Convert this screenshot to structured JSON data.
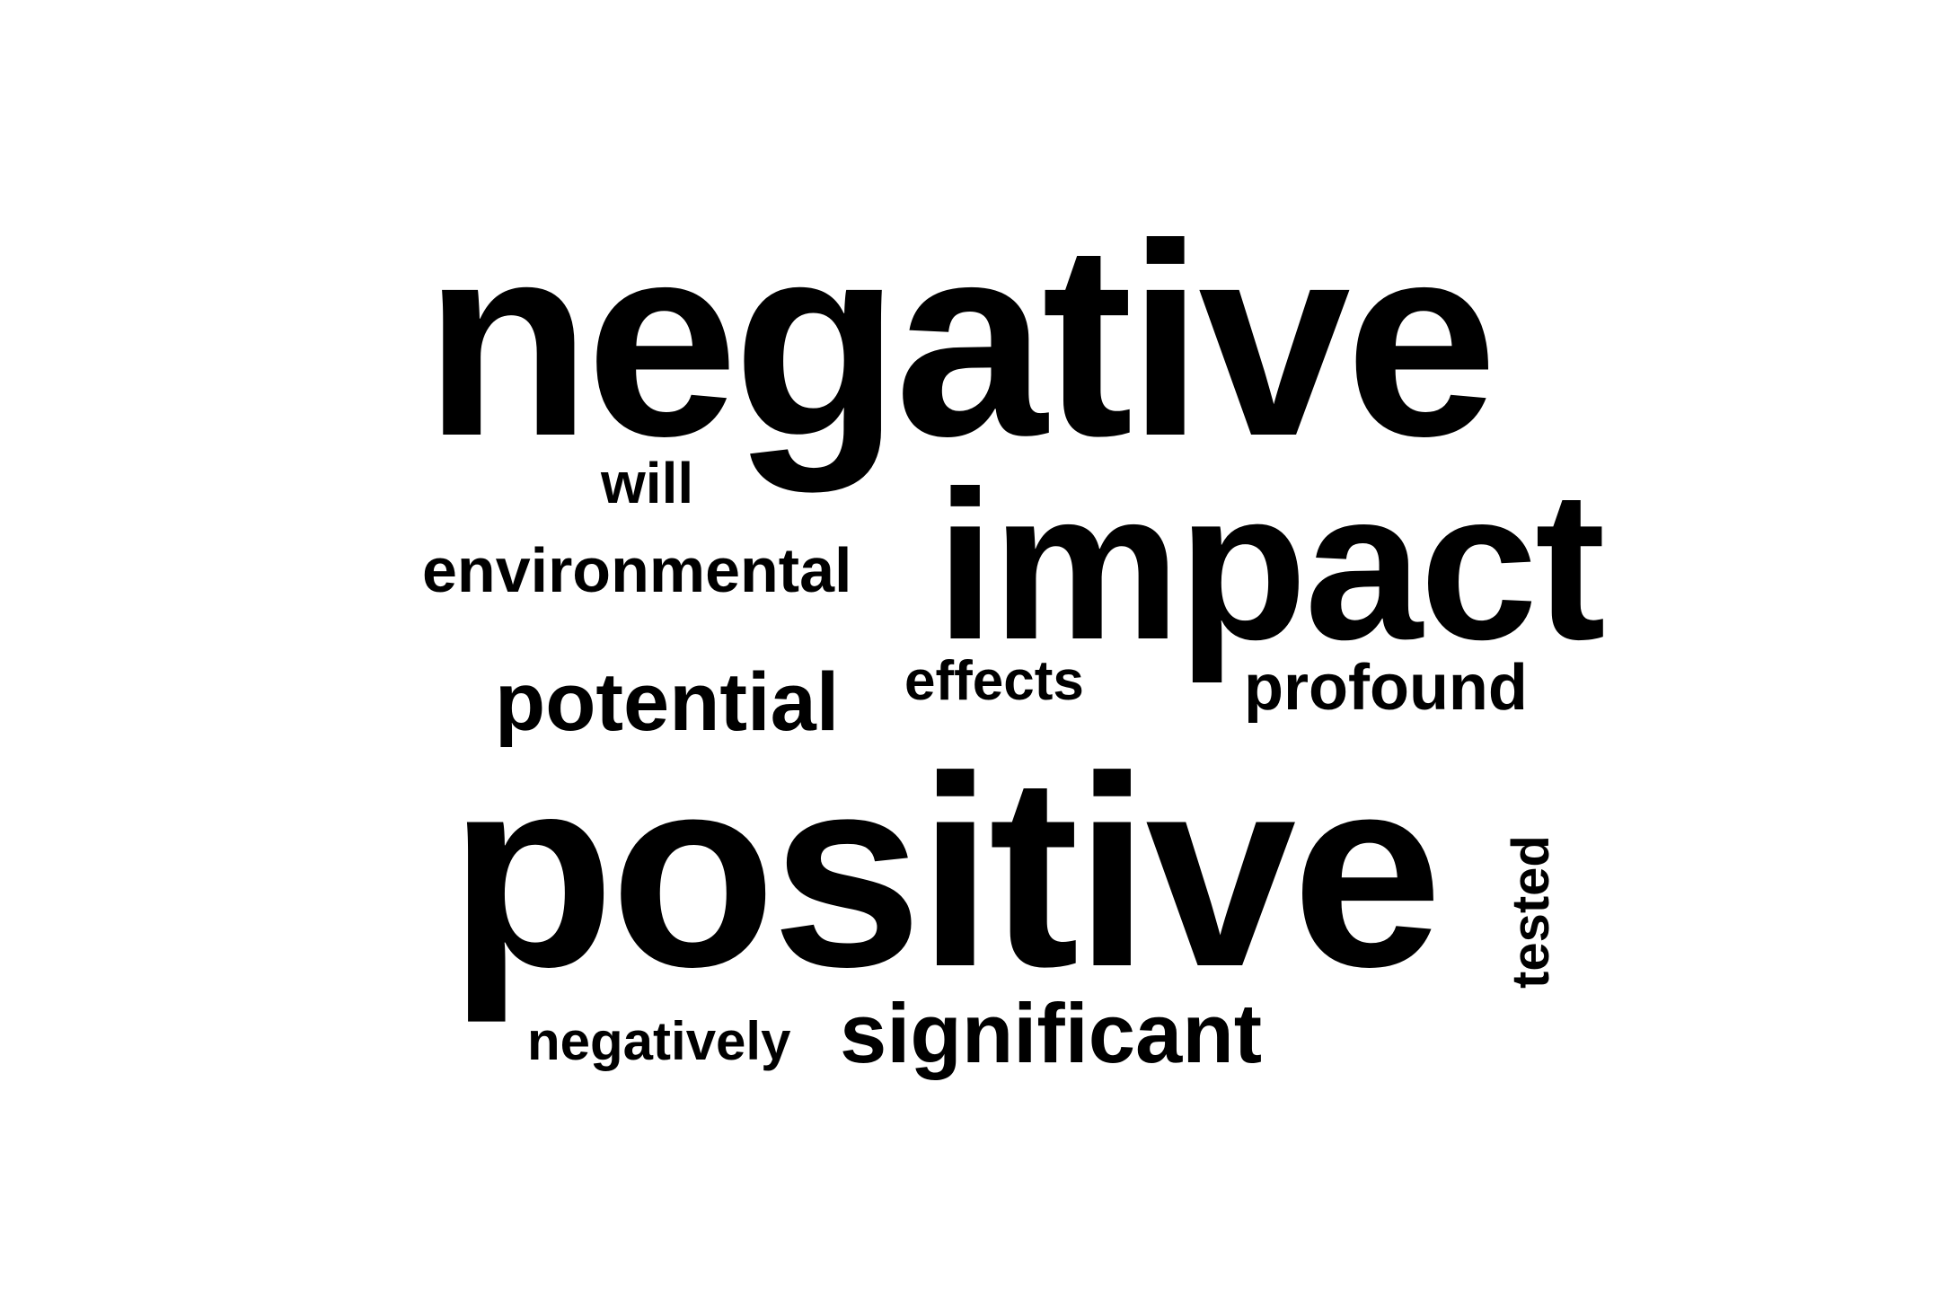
{
  "wordcloud": {
    "text_color": "#000000",
    "background_color": "#ffffff",
    "words": {
      "negative": "negative",
      "will": "will",
      "impact": "impact",
      "environmental": "environmental",
      "effects": "effects",
      "profound": "profound",
      "potential": "potential",
      "positive": "positive",
      "negatively": "negatively",
      "significant": "significant",
      "tested": "tested"
    }
  }
}
